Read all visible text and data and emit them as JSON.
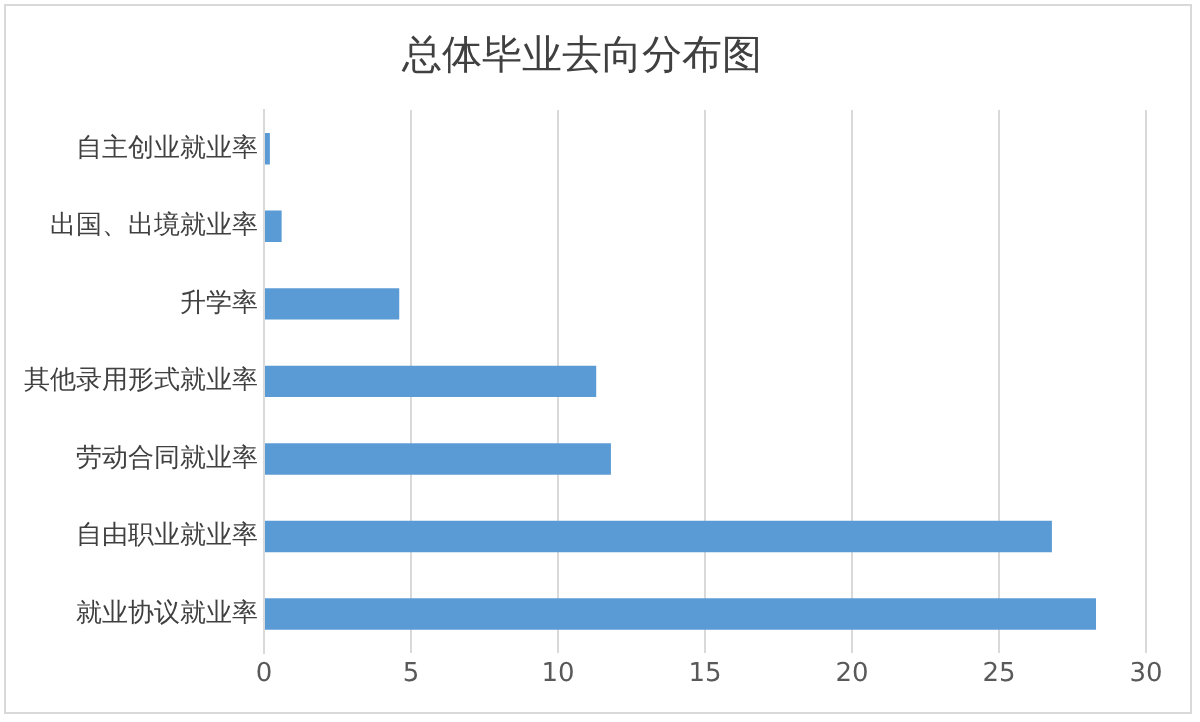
{
  "chart_data": {
    "type": "bar",
    "orientation": "horizontal",
    "title": "总体毕业去向分布图",
    "categories": [
      "自主创业就业率",
      "出国、出境就业率",
      "升学率",
      "其他录用形式就业率",
      "劳动合同就业率",
      "自由职业就业率",
      "就业协议就业率"
    ],
    "values": [
      0.2,
      0.6,
      4.6,
      11.3,
      11.8,
      26.8,
      28.3
    ],
    "color": "#5b9bd5",
    "xlim": [
      0,
      30
    ],
    "xticks": [
      0,
      5,
      10,
      15,
      20,
      25,
      30
    ],
    "grid": "x"
  }
}
